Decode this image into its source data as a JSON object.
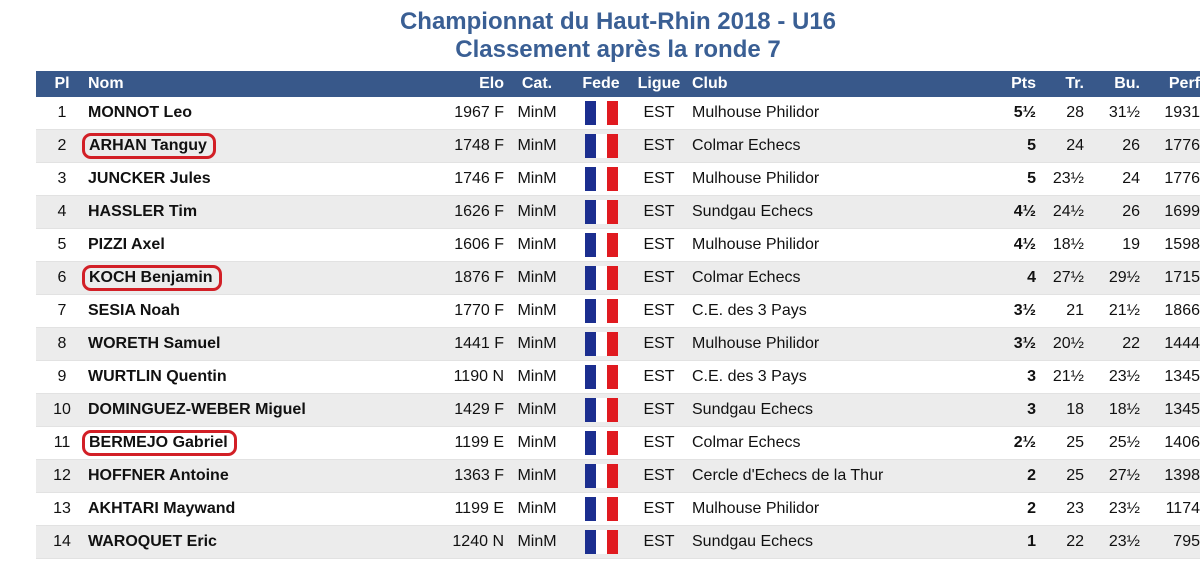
{
  "title": "Championnat du Haut-Rhin 2018 - U16",
  "subtitle": "Classement après la ronde 7",
  "columns": {
    "pl": "Pl",
    "nom": "Nom",
    "elo": "Elo",
    "cat": "Cat.",
    "fede": "Fede",
    "ligue": "Ligue",
    "club": "Club",
    "pts": "Pts",
    "tr": "Tr.",
    "bu": "Bu.",
    "perf": "Perf"
  },
  "flag_icon": "france-flag-icon",
  "colors": {
    "header": "#38588a",
    "title": "#3a5f94",
    "circle": "#d21f26",
    "flag_blue": "#1b2e8f",
    "flag_red": "#e01a20"
  },
  "rows": [
    {
      "pl": "1",
      "nom": "MONNOT Leo",
      "elo": "1967 F",
      "cat": "MinM",
      "ligue": "EST",
      "club": "Mulhouse Philidor",
      "pts": "5½",
      "tr": "28",
      "bu": "31½",
      "perf": "1931",
      "circled": false
    },
    {
      "pl": "2",
      "nom": "ARHAN Tanguy",
      "elo": "1748 F",
      "cat": "MinM",
      "ligue": "EST",
      "club": "Colmar Echecs",
      "pts": "5",
      "tr": "24",
      "bu": "26",
      "perf": "1776",
      "circled": true
    },
    {
      "pl": "3",
      "nom": "JUNCKER Jules",
      "elo": "1746 F",
      "cat": "MinM",
      "ligue": "EST",
      "club": "Mulhouse Philidor",
      "pts": "5",
      "tr": "23½",
      "bu": "24",
      "perf": "1776",
      "circled": false
    },
    {
      "pl": "4",
      "nom": "HASSLER Tim",
      "elo": "1626 F",
      "cat": "MinM",
      "ligue": "EST",
      "club": "Sundgau Echecs",
      "pts": "4½",
      "tr": "24½",
      "bu": "26",
      "perf": "1699",
      "circled": false
    },
    {
      "pl": "5",
      "nom": "PIZZI Axel",
      "elo": "1606 F",
      "cat": "MinM",
      "ligue": "EST",
      "club": "Mulhouse Philidor",
      "pts": "4½",
      "tr": "18½",
      "bu": "19",
      "perf": "1598",
      "circled": false
    },
    {
      "pl": "6",
      "nom": "KOCH Benjamin",
      "elo": "1876 F",
      "cat": "MinM",
      "ligue": "EST",
      "club": "Colmar Echecs",
      "pts": "4",
      "tr": "27½",
      "bu": "29½",
      "perf": "1715",
      "circled": true
    },
    {
      "pl": "7",
      "nom": "SESIA Noah",
      "elo": "1770 F",
      "cat": "MinM",
      "ligue": "EST",
      "club": "C.E. des 3 Pays",
      "pts": "3½",
      "tr": "21",
      "bu": "21½",
      "perf": "1866",
      "circled": false
    },
    {
      "pl": "8",
      "nom": "WORETH Samuel",
      "elo": "1441 F",
      "cat": "MinM",
      "ligue": "EST",
      "club": "Mulhouse Philidor",
      "pts": "3½",
      "tr": "20½",
      "bu": "22",
      "perf": "1444",
      "circled": false
    },
    {
      "pl": "9",
      "nom": "WURTLIN Quentin",
      "elo": "1190 N",
      "cat": "MinM",
      "ligue": "EST",
      "club": "C.E. des 3 Pays",
      "pts": "3",
      "tr": "21½",
      "bu": "23½",
      "perf": "1345",
      "circled": false
    },
    {
      "pl": "10",
      "nom": "DOMINGUEZ-WEBER Miguel",
      "elo": "1429 F",
      "cat": "MinM",
      "ligue": "EST",
      "club": "Sundgau Echecs",
      "pts": "3",
      "tr": "18",
      "bu": "18½",
      "perf": "1345",
      "circled": false
    },
    {
      "pl": "11",
      "nom": "BERMEJO Gabriel",
      "elo": "1199 E",
      "cat": "MinM",
      "ligue": "EST",
      "club": "Colmar Echecs",
      "pts": "2½",
      "tr": "25",
      "bu": "25½",
      "perf": "1406",
      "circled": true
    },
    {
      "pl": "12",
      "nom": "HOFFNER Antoine",
      "elo": "1363 F",
      "cat": "MinM",
      "ligue": "EST",
      "club": "Cercle d'Echecs de la Thur",
      "pts": "2",
      "tr": "25",
      "bu": "27½",
      "perf": "1398",
      "circled": false
    },
    {
      "pl": "13",
      "nom": "AKHTARI Maywand",
      "elo": "1199 E",
      "cat": "MinM",
      "ligue": "EST",
      "club": "Mulhouse Philidor",
      "pts": "2",
      "tr": "23",
      "bu": "23½",
      "perf": "1174",
      "circled": false
    },
    {
      "pl": "14",
      "nom": "WAROQUET Eric",
      "elo": "1240 N",
      "cat": "MinM",
      "ligue": "EST",
      "club": "Sundgau Echecs",
      "pts": "1",
      "tr": "22",
      "bu": "23½",
      "perf": "795",
      "circled": false
    }
  ]
}
